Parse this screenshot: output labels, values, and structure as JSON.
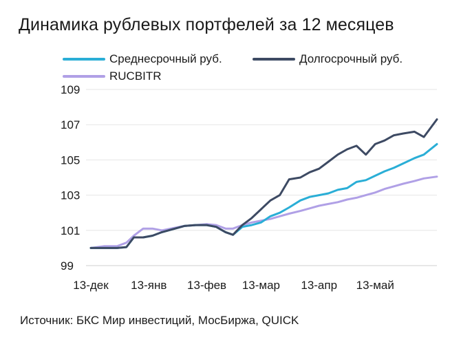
{
  "chart_data": {
    "type": "line",
    "title": "Динамика рублевых портфелей за 12 месяцев",
    "xlabel": "",
    "ylabel": "",
    "x_tick_labels": [
      "13-дек",
      "13-янв",
      "13-фев",
      "13-мар",
      "13-апр",
      "13-май"
    ],
    "x_tick_dates": [
      "2023-12-13",
      "2024-01-13",
      "2024-02-13",
      "2024-03-13",
      "2024-04-13",
      "2024-05-13"
    ],
    "x_range": [
      "2023-12-13",
      "2024-06-15"
    ],
    "y_ticks": [
      99,
      101,
      103,
      105,
      107,
      109
    ],
    "ylim": [
      99,
      109
    ],
    "grid": "horizontal",
    "legend_position": "top-left",
    "series": [
      {
        "name": "Среднесрочный руб.",
        "color": "#2aaed6",
        "x": [
          "2023-12-13",
          "2023-12-20",
          "2023-12-27",
          "2024-01-01",
          "2024-01-05",
          "2024-01-10",
          "2024-01-15",
          "2024-01-20",
          "2024-01-27",
          "2024-02-01",
          "2024-02-07",
          "2024-02-13",
          "2024-02-18",
          "2024-02-23",
          "2024-02-27",
          "2024-03-03",
          "2024-03-08",
          "2024-03-13",
          "2024-03-18",
          "2024-03-23",
          "2024-03-28",
          "2024-04-03",
          "2024-04-08",
          "2024-04-13",
          "2024-04-18",
          "2024-04-23",
          "2024-04-28",
          "2024-05-03",
          "2024-05-08",
          "2024-05-13",
          "2024-05-18",
          "2024-05-23",
          "2024-05-28",
          "2024-06-03",
          "2024-06-08",
          "2024-06-15"
        ],
        "y": [
          100.0,
          100.0,
          100.0,
          100.05,
          100.6,
          100.6,
          100.7,
          100.9,
          101.1,
          101.25,
          101.3,
          101.3,
          101.2,
          100.9,
          100.75,
          101.2,
          101.3,
          101.45,
          101.8,
          102.0,
          102.3,
          102.7,
          102.9,
          103.0,
          103.1,
          103.3,
          103.4,
          103.75,
          103.85,
          104.1,
          104.35,
          104.55,
          104.8,
          105.1,
          105.3,
          105.9
        ]
      },
      {
        "name": "Долгосрочный руб.",
        "color": "#3d4a63",
        "x": [
          "2023-12-13",
          "2023-12-20",
          "2023-12-27",
          "2024-01-01",
          "2024-01-05",
          "2024-01-10",
          "2024-01-15",
          "2024-01-20",
          "2024-01-27",
          "2024-02-01",
          "2024-02-07",
          "2024-02-13",
          "2024-02-18",
          "2024-02-23",
          "2024-02-27",
          "2024-03-03",
          "2024-03-08",
          "2024-03-13",
          "2024-03-18",
          "2024-03-23",
          "2024-03-28",
          "2024-04-03",
          "2024-04-08",
          "2024-04-13",
          "2024-04-18",
          "2024-04-23",
          "2024-04-28",
          "2024-05-03",
          "2024-05-08",
          "2024-05-13",
          "2024-05-18",
          "2024-05-23",
          "2024-05-28",
          "2024-06-03",
          "2024-06-08",
          "2024-06-15"
        ],
        "y": [
          100.0,
          100.0,
          100.0,
          100.05,
          100.6,
          100.6,
          100.7,
          100.9,
          101.1,
          101.25,
          101.3,
          101.3,
          101.2,
          100.9,
          100.75,
          101.3,
          101.7,
          102.2,
          102.7,
          103.0,
          103.9,
          104.0,
          104.3,
          104.5,
          104.9,
          105.3,
          105.6,
          105.8,
          105.3,
          105.9,
          106.1,
          106.4,
          106.5,
          106.6,
          106.3,
          107.3
        ]
      },
      {
        "name": "RUCBITR",
        "color": "#b0a0e6",
        "x": [
          "2023-12-13",
          "2023-12-20",
          "2023-12-27",
          "2024-01-01",
          "2024-01-05",
          "2024-01-10",
          "2024-01-15",
          "2024-01-20",
          "2024-01-27",
          "2024-02-01",
          "2024-02-07",
          "2024-02-13",
          "2024-02-18",
          "2024-02-23",
          "2024-02-27",
          "2024-03-03",
          "2024-03-08",
          "2024-03-13",
          "2024-03-18",
          "2024-03-23",
          "2024-03-28",
          "2024-04-03",
          "2024-04-08",
          "2024-04-13",
          "2024-04-18",
          "2024-04-23",
          "2024-04-28",
          "2024-05-03",
          "2024-05-08",
          "2024-05-13",
          "2024-05-18",
          "2024-05-23",
          "2024-05-28",
          "2024-06-03",
          "2024-06-08",
          "2024-06-15"
        ],
        "y": [
          100.0,
          100.1,
          100.1,
          100.3,
          100.7,
          101.1,
          101.1,
          101.0,
          101.15,
          101.25,
          101.3,
          101.35,
          101.3,
          101.1,
          101.1,
          101.3,
          101.45,
          101.55,
          101.65,
          101.8,
          101.95,
          102.1,
          102.25,
          102.4,
          102.5,
          102.6,
          102.75,
          102.85,
          103.0,
          103.15,
          103.35,
          103.5,
          103.65,
          103.8,
          103.95,
          104.05
        ]
      }
    ]
  },
  "source_text": "Источник: БКС Мир инвестиций, МосБиржа, QUICK"
}
